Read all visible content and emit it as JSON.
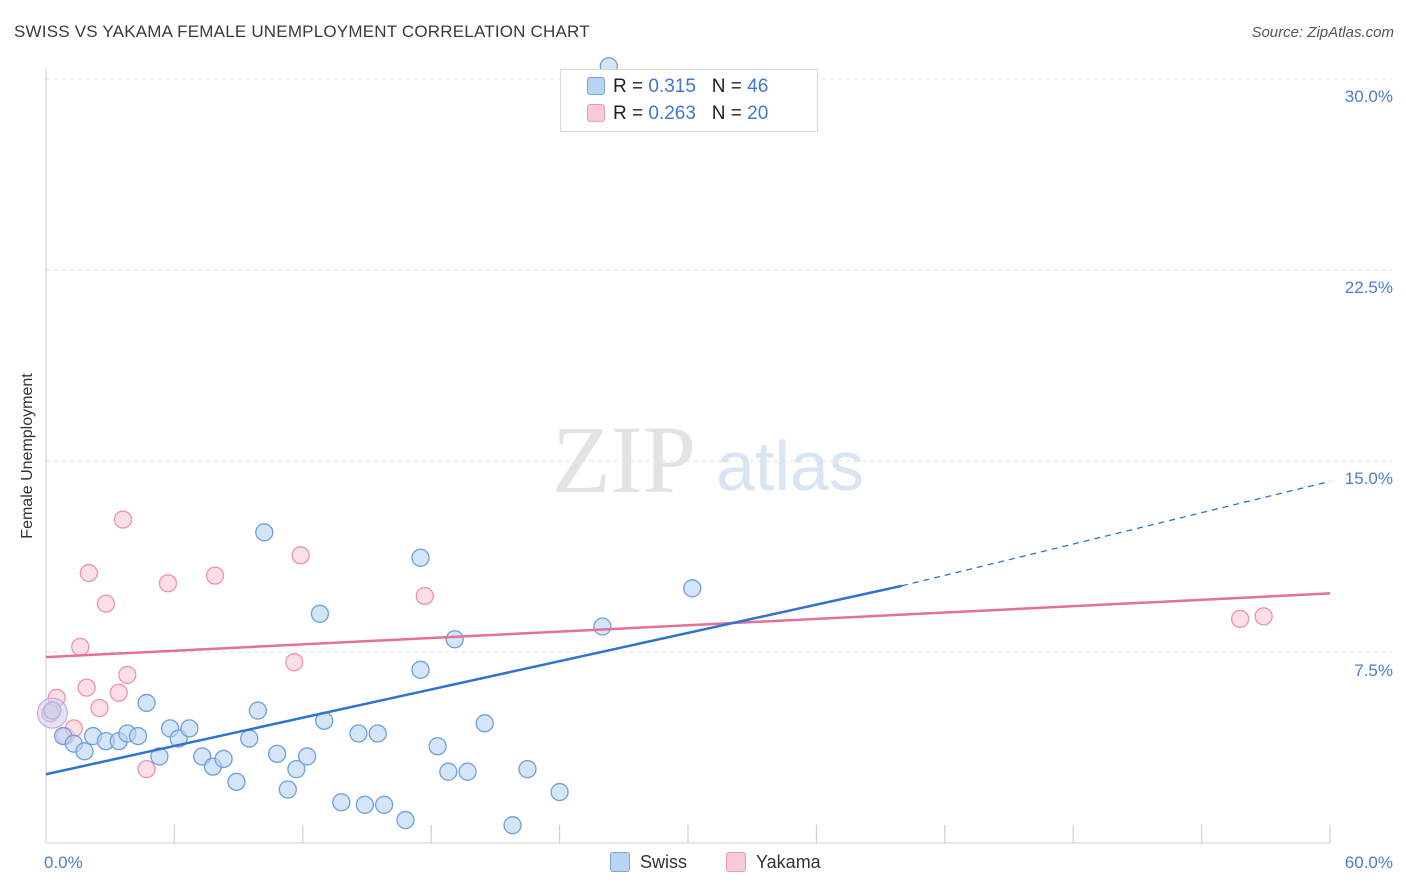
{
  "header": {
    "title": "SWISS VS YAKAMA FEMALE UNEMPLOYMENT CORRELATION CHART",
    "source": "Source: ZipAtlas.com"
  },
  "watermark": {
    "zip": "ZIP",
    "atlas": "atlas"
  },
  "legend": {
    "swiss": {
      "r_label": "R =",
      "r_value": "0.315",
      "n_label": "N =",
      "n_value": "46"
    },
    "yakama": {
      "r_label": "R =",
      "r_value": "0.263",
      "n_label": "N =",
      "n_value": "20"
    }
  },
  "colors": {
    "swiss_fill": "#b9d3f3",
    "swiss_stroke": "#6f9fdc",
    "swiss_line": "#2f72d0",
    "yakama_fill": "#f9c9d6",
    "yakama_stroke": "#ec93ad",
    "yakama_line": "#e4709a",
    "grid": "#e2e2e2",
    "tick_text": "#4a7fc8"
  },
  "chart_data": {
    "type": "scatter",
    "title": "SWISS VS YAKAMA FEMALE UNEMPLOYMENT CORRELATION CHART",
    "xlabel": "",
    "ylabel": "Female Unemployment",
    "xlim": [
      0,
      60
    ],
    "ylim": [
      0,
      30
    ],
    "x_tick_labels": [
      "0.0%",
      "60.0%"
    ],
    "y_ticks": [
      7.5,
      15.0,
      22.5,
      30.0
    ],
    "y_tick_labels": [
      "7.5%",
      "15.0%",
      "22.5%",
      "30.0%"
    ],
    "legend_bottom": [
      "Swiss",
      "Yakama"
    ],
    "series": [
      {
        "name": "Swiss",
        "points": [
          [
            0.3,
            5.2
          ],
          [
            0.8,
            4.2
          ],
          [
            1.3,
            3.9
          ],
          [
            1.8,
            3.6
          ],
          [
            2.2,
            4.2
          ],
          [
            2.8,
            4.0
          ],
          [
            3.4,
            4.0
          ],
          [
            3.8,
            4.3
          ],
          [
            4.3,
            4.2
          ],
          [
            4.7,
            5.5
          ],
          [
            5.3,
            3.4
          ],
          [
            5.8,
            4.5
          ],
          [
            6.2,
            4.1
          ],
          [
            6.7,
            4.5
          ],
          [
            7.3,
            3.4
          ],
          [
            7.8,
            3.0
          ],
          [
            8.3,
            3.3
          ],
          [
            8.9,
            2.4
          ],
          [
            9.5,
            4.1
          ],
          [
            9.9,
            5.2
          ],
          [
            10.2,
            12.2
          ],
          [
            10.8,
            3.5
          ],
          [
            11.3,
            2.1
          ],
          [
            11.7,
            2.9
          ],
          [
            12.2,
            3.4
          ],
          [
            12.8,
            9.0
          ],
          [
            13.0,
            4.8
          ],
          [
            13.8,
            1.6
          ],
          [
            14.6,
            4.3
          ],
          [
            14.9,
            1.5
          ],
          [
            15.5,
            4.3
          ],
          [
            15.8,
            1.5
          ],
          [
            16.8,
            0.9
          ],
          [
            17.5,
            11.2
          ],
          [
            17.5,
            6.8
          ],
          [
            18.3,
            3.8
          ],
          [
            18.8,
            2.8
          ],
          [
            19.1,
            8.0
          ],
          [
            19.7,
            2.8
          ],
          [
            20.5,
            4.7
          ],
          [
            21.8,
            0.7
          ],
          [
            22.5,
            2.9
          ],
          [
            24.0,
            2.0
          ],
          [
            26.0,
            8.5
          ],
          [
            30.2,
            10.0
          ],
          [
            26.3,
            30.5
          ]
        ],
        "trend": {
          "x0": 0,
          "y0": 2.7,
          "x1": 40,
          "y1": 10.1,
          "dashed_to_x": 60,
          "dashed_to_y": 14.2
        }
      },
      {
        "name": "Yakama",
        "points": [
          [
            0.2,
            5.1
          ],
          [
            0.5,
            5.7
          ],
          [
            0.9,
            4.2
          ],
          [
            1.3,
            4.5
          ],
          [
            1.6,
            7.7
          ],
          [
            1.9,
            6.1
          ],
          [
            2.0,
            10.6
          ],
          [
            2.5,
            5.3
          ],
          [
            2.8,
            9.4
          ],
          [
            3.4,
            5.9
          ],
          [
            3.6,
            12.7
          ],
          [
            3.8,
            6.6
          ],
          [
            4.7,
            2.9
          ],
          [
            5.7,
            10.2
          ],
          [
            7.9,
            10.5
          ],
          [
            11.6,
            7.1
          ],
          [
            11.9,
            11.3
          ],
          [
            17.7,
            9.7
          ],
          [
            55.8,
            8.8
          ],
          [
            56.9,
            8.9
          ]
        ],
        "trend": {
          "x0": 0,
          "y0": 7.3,
          "x1": 60,
          "y1": 9.8
        }
      }
    ]
  }
}
